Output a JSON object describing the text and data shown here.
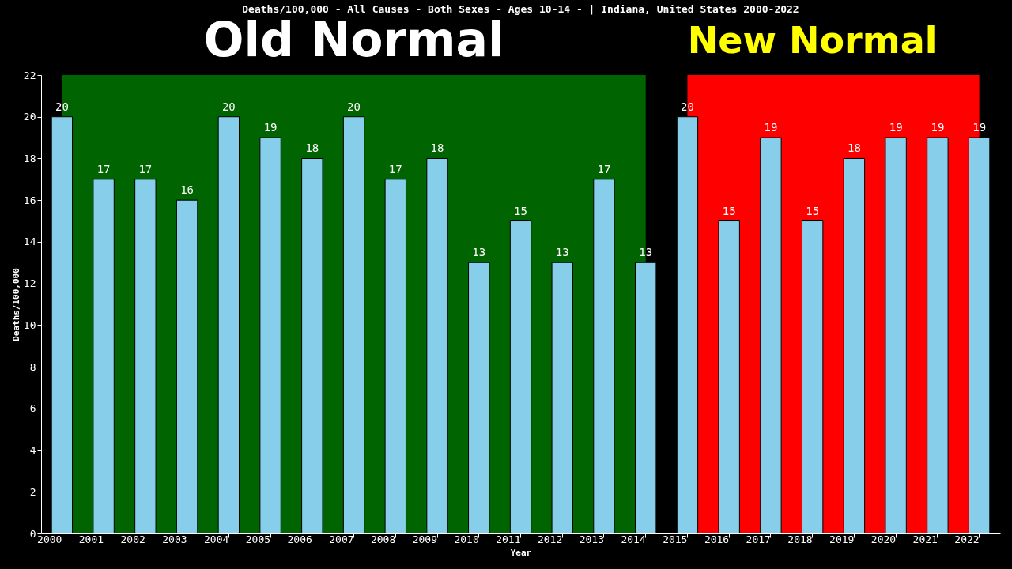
{
  "chart_data": {
    "type": "bar",
    "title": "Deaths/100,000 - All Causes - Both Sexes - Ages 10-14 -  | Indiana, United States 2000-2022",
    "xlabel": "Year",
    "ylabel": "Deaths/100,000",
    "categories": [
      "2000",
      "2001",
      "2002",
      "2003",
      "2004",
      "2005",
      "2006",
      "2007",
      "2008",
      "2009",
      "2010",
      "2011",
      "2012",
      "2013",
      "2014",
      "2015",
      "2016",
      "2017",
      "2018",
      "2019",
      "2020",
      "2021",
      "2022"
    ],
    "values": [
      20,
      17,
      17,
      16,
      20,
      19,
      18,
      20,
      17,
      18,
      13,
      15,
      13,
      17,
      13,
      20,
      15,
      19,
      15,
      18,
      19,
      19,
      19
    ],
    "color": "#87ceeb",
    "data_labels": true,
    "ylim": [
      0,
      22
    ],
    "yticks": [
      0,
      2,
      4,
      6,
      8,
      10,
      12,
      14,
      16,
      18,
      20,
      22
    ],
    "grid": false,
    "bands": [
      {
        "axis": "x",
        "from": "2000",
        "to": "2014",
        "label": "Old Normal",
        "color": "#006400"
      },
      {
        "axis": "x",
        "from": "2015",
        "to": "2022",
        "label": "New Normal",
        "color": "#ff0000"
      }
    ]
  }
}
